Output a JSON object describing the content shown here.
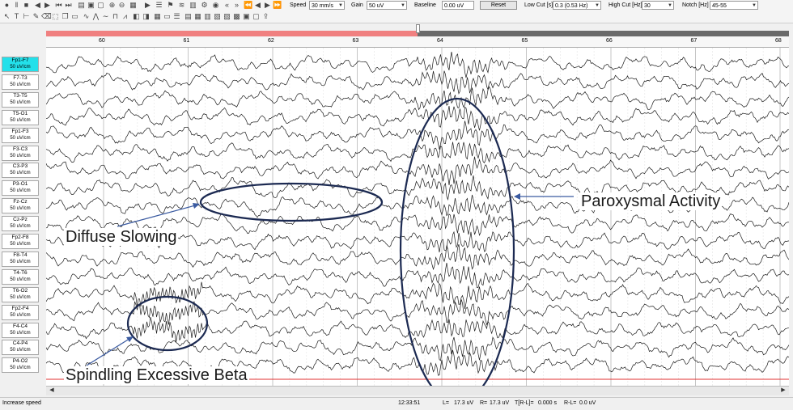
{
  "toolbar": {
    "speed_label": "Speed",
    "speed_value": "30 mm/s",
    "gain_label": "Gain",
    "gain_value": "50 uV",
    "baseline_label": "Baseline",
    "baseline_value": "0.00 uV",
    "reset_label": "Reset",
    "lowcut_label": "Low Cut [s]",
    "lowcut_value": "0.3 (0.53 Hz)",
    "highcut_label": "High Cut [Hz]",
    "highcut_value": "30",
    "notch_label": "Notch [Hz]",
    "notch_value": "45-55"
  },
  "timeaxis": [
    "60",
    "61",
    "62",
    "63",
    "64",
    "65",
    "66",
    "67",
    "68"
  ],
  "recording_progress": 0.5,
  "channels": [
    {
      "name": "Fp1-F7",
      "unit": "50 uV/cm",
      "active": true
    },
    {
      "name": "F7-T3",
      "unit": "50 uV/cm"
    },
    {
      "name": "T3-T5",
      "unit": "50 uV/cm"
    },
    {
      "name": "T5-O1",
      "unit": "50 uV/cm"
    },
    {
      "name": "Fp1-F3",
      "unit": "50 uV/cm"
    },
    {
      "name": "F3-C3",
      "unit": "50 uV/cm"
    },
    {
      "name": "C3-P3",
      "unit": "50 uV/cm"
    },
    {
      "name": "P3-O1",
      "unit": "50 uV/cm"
    },
    {
      "name": "Fz-Cz",
      "unit": "50 uV/cm"
    },
    {
      "name": "Cz-Pz",
      "unit": "50 uV/cm"
    },
    {
      "name": "Fp2-F8",
      "unit": "50 uV/cm"
    },
    {
      "name": "F8-T4",
      "unit": "50 uV/cm"
    },
    {
      "name": "T4-T6",
      "unit": "50 uV/cm"
    },
    {
      "name": "T6-O2",
      "unit": "50 uV/cm"
    },
    {
      "name": "Fp2-F4",
      "unit": "50 uV/cm"
    },
    {
      "name": "F4-C4",
      "unit": "50 uV/cm"
    },
    {
      "name": "C4-P4",
      "unit": "50 uV/cm"
    },
    {
      "name": "P4-O2",
      "unit": "50 uV/cm"
    }
  ],
  "annotations": {
    "diffuse": "Diffuse Slowing",
    "paroxysmal": "Paroxysmal Activity",
    "spindling": "Spindling Excessive Beta"
  },
  "status": {
    "hint": "Increase speed",
    "time": "12:33:51",
    "left_label": "L=",
    "left_value": "17.3 uV",
    "right_label": "R=",
    "right_value": "17.3 uV",
    "t_label": "T[R-L]=",
    "t_value": "0.000 s",
    "rl_label": "R-L=",
    "rl_value": "0.0 uV"
  },
  "colors": {
    "active_channel": "#23e0ea",
    "trace": "#1a1a1a",
    "annotation": "#1c2a52",
    "progress_fill": "#f08080",
    "baseline_marker": "#e03030"
  }
}
